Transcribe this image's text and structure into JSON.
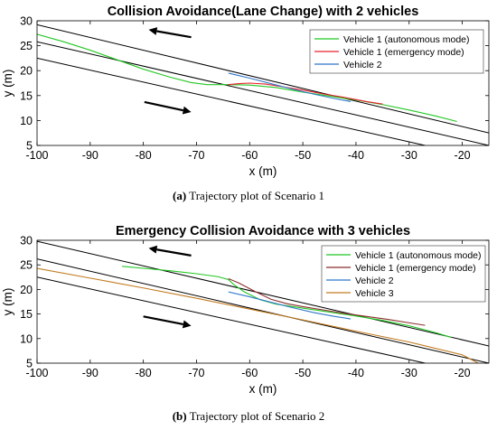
{
  "captions": [
    {
      "label": "(a)",
      "text": " Trajectory plot of Scenario 1"
    },
    {
      "label": "(b)",
      "text": " Trajectory plot of Scenario 2"
    }
  ],
  "chart_data": [
    {
      "type": "line",
      "title": "Collision Avoidance(Lane Change) with 2 vehicles",
      "xlabel": "x (m)",
      "ylabel": "y (m)",
      "xlim": [
        -100,
        -15
      ],
      "ylim": [
        5,
        30
      ],
      "xticks": [
        -100,
        -90,
        -80,
        -70,
        -60,
        -50,
        -40,
        -30,
        -20
      ],
      "yticks": [
        5,
        10,
        15,
        20,
        25,
        30
      ],
      "grid": false,
      "legend": "top-right",
      "lane_lines": [
        {
          "x": [
            -100,
            -15
          ],
          "y": [
            29.2,
            7.5
          ]
        },
        {
          "x": [
            -100,
            -15
          ],
          "y": [
            25.8,
            5.0
          ]
        },
        {
          "x": [
            -100,
            -27
          ],
          "y": [
            22.5,
            5.0
          ]
        }
      ],
      "arrows": [
        {
          "from": [
            -71,
            26.7
          ],
          "to": [
            -79,
            28.2
          ]
        },
        {
          "from": [
            -79.8,
            13.7
          ],
          "to": [
            -71,
            11.7
          ]
        }
      ],
      "series": [
        {
          "name": "Vehicle 1 (autonomous mode)",
          "color": "#22c722",
          "x": [
            -100,
            -95,
            -90,
            -85,
            -80,
            -75,
            -71,
            -68,
            -64,
            -60,
            -55,
            -50,
            -45,
            -40,
            -35,
            -30,
            -25,
            -21
          ],
          "y": [
            27.3,
            25.8,
            24.1,
            22.2,
            20.3,
            18.7,
            17.6,
            17.2,
            17.2,
            17.1,
            16.6,
            15.7,
            14.9,
            14.1,
            13.2,
            12.1,
            10.9,
            9.8
          ]
        },
        {
          "name": "Vehicle 1 (emergency mode)",
          "color": "#e8202a",
          "x": [
            -64,
            -62,
            -60,
            -57,
            -54,
            -50,
            -46,
            -42,
            -38,
            -35
          ],
          "y": [
            17.2,
            17.4,
            17.5,
            17.3,
            16.8,
            16.1,
            15.3,
            14.6,
            13.8,
            13.3
          ]
        },
        {
          "name": "Vehicle 2",
          "color": "#2f78c9",
          "x": [
            -64,
            -60,
            -56,
            -52,
            -48,
            -44,
            -41
          ],
          "y": [
            19.5,
            18.5,
            17.4,
            16.3,
            15.3,
            14.4,
            13.8
          ]
        }
      ]
    },
    {
      "type": "line",
      "title": "Emergency Collision Avoidance with 3 vehicles",
      "xlabel": "x (m)",
      "ylabel": "y (m)",
      "xlim": [
        -100,
        -15
      ],
      "ylim": [
        5,
        30
      ],
      "xticks": [
        -100,
        -90,
        -80,
        -70,
        -60,
        -50,
        -40,
        -30,
        -20
      ],
      "yticks": [
        5,
        10,
        15,
        20,
        25,
        30
      ],
      "grid": false,
      "legend": "top-right",
      "lane_lines": [
        {
          "x": [
            -100,
            -15
          ],
          "y": [
            29.8,
            8.5
          ]
        },
        {
          "x": [
            -100,
            -15
          ],
          "y": [
            26.2,
            5.0
          ]
        },
        {
          "x": [
            -100,
            -27
          ],
          "y": [
            22.5,
            5.0
          ]
        }
      ],
      "arrows": [
        {
          "from": [
            -71,
            26.9
          ],
          "to": [
            -79,
            28.4
          ]
        },
        {
          "from": [
            -80,
            14.5
          ],
          "to": [
            -71,
            12.6
          ]
        }
      ],
      "series": [
        {
          "name": "Vehicle 1 (autonomous mode)",
          "color": "#22c722",
          "x": [
            -84,
            -80,
            -75,
            -70,
            -66,
            -64,
            -63,
            -61,
            -58,
            -55,
            -50,
            -45,
            -40,
            -35,
            -30,
            -25,
            -22
          ],
          "y": [
            24.7,
            24.3,
            23.8,
            23.2,
            22.6,
            22.0,
            21.0,
            19.5,
            17.9,
            17.0,
            16.2,
            15.4,
            14.6,
            13.7,
            12.6,
            11.2,
            10.2
          ]
        },
        {
          "name": "Vehicle 1 (emergency mode)",
          "color": "#8b2e2e",
          "x": [
            -64,
            -62,
            -59,
            -56,
            -53,
            -50,
            -46,
            -42,
            -38,
            -34,
            -30,
            -27
          ],
          "y": [
            22.2,
            21.3,
            19.6,
            18.0,
            17.1,
            16.5,
            15.8,
            15.1,
            14.5,
            13.9,
            13.2,
            12.7
          ]
        },
        {
          "name": "Vehicle 2",
          "color": "#2f78c9",
          "x": [
            -64,
            -60,
            -56,
            -52,
            -48,
            -44,
            -41
          ],
          "y": [
            19.5,
            18.5,
            17.4,
            16.3,
            15.3,
            14.5,
            14.0
          ]
        },
        {
          "name": "Vehicle 3",
          "color": "#c27a1e",
          "x": [
            -100,
            -90,
            -80,
            -70,
            -60,
            -50,
            -40,
            -30,
            -20,
            -17
          ],
          "y": [
            24.3,
            22.3,
            20.3,
            18.2,
            16.0,
            13.8,
            11.5,
            9.3,
            6.7,
            5.0
          ]
        }
      ]
    }
  ]
}
